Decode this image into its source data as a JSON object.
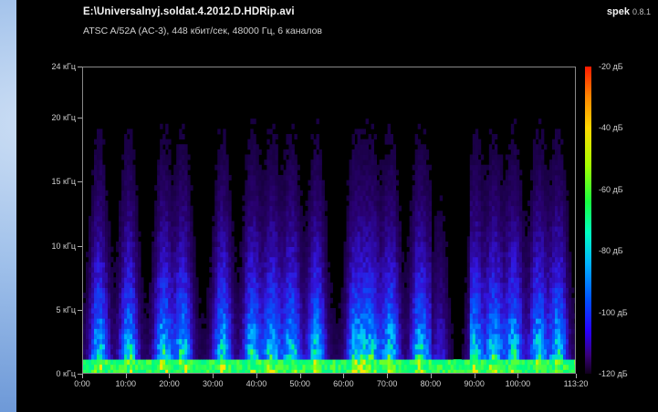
{
  "window": {
    "title": "E:\\Universalnyj.soldat.4.2012.D.HDRip.avi",
    "subtitle": "ATSC A/52A (AC-3), 448 кбит/сек, 48000 Гц, 6 каналов",
    "app_name": "spek",
    "app_version": "0.8.1"
  },
  "chart_data": {
    "type": "heatmap",
    "title": "",
    "xlabel": "",
    "ylabel": "",
    "x_ticks": [
      "0:00",
      "10:00",
      "20:00",
      "30:00",
      "40:00",
      "50:00",
      "60:00",
      "70:00",
      "80:00",
      "90:00",
      "100:00",
      "113:20"
    ],
    "x_tick_minutes": [
      0,
      10,
      20,
      30,
      40,
      50,
      60,
      70,
      80,
      90,
      100,
      113.33
    ],
    "y_ticks": [
      "0 кГц",
      "5 кГц",
      "10 кГц",
      "15 кГц",
      "20 кГц",
      "24 кГц"
    ],
    "y_tick_khz": [
      0,
      5,
      10,
      15,
      20,
      24
    ],
    "colorbar_ticks": [
      "-20 дБ",
      "-40 дБ",
      "-60 дБ",
      "-80 дБ",
      "-100 дБ",
      "-120 дБ"
    ],
    "colorbar_db": [
      -20,
      -40,
      -60,
      -80,
      -100,
      -120
    ],
    "xlim": [
      0,
      113.33
    ],
    "ylim": [
      0,
      24
    ],
    "zlim": [
      -120,
      -20
    ]
  }
}
